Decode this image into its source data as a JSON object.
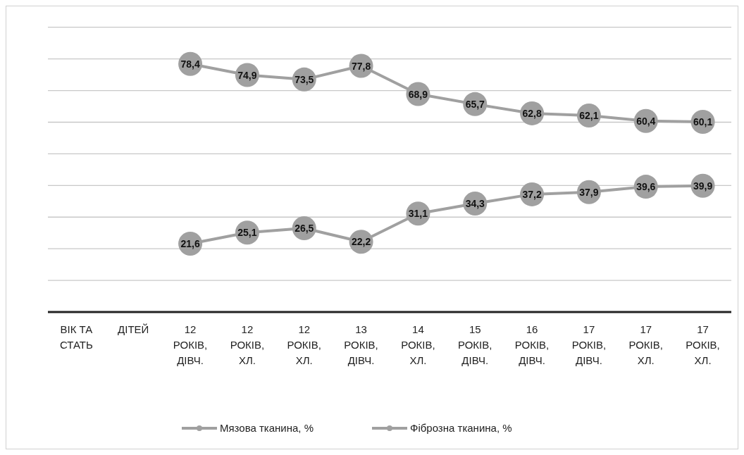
{
  "chart_data": {
    "type": "line",
    "categories": [
      "ВІК ТА СТАТЬ",
      "ДІТЕЙ",
      "12 РОКІВ, ДІВЧ.",
      "12 РОКІВ, ХЛ.",
      "12 РОКІВ, ХЛ.",
      "13 РОКІВ, ДІВЧ.",
      "14 РОКІВ, ХЛ.",
      "15 РОКІВ, ДІВЧ.",
      "16 РОКІВ, ДІВЧ.",
      "17 РОКІВ, ДІВЧ.",
      "17 РОКІВ, ХЛ.",
      "17 РОКІВ, ХЛ."
    ],
    "series": [
      {
        "name": "Мязова тканина, %",
        "color": "#a0a0a0",
        "values": [
          null,
          null,
          78.4,
          74.9,
          73.5,
          77.8,
          68.9,
          65.7,
          62.8,
          62.1,
          60.4,
          60.1
        ],
        "value_labels": [
          null,
          null,
          "78,4",
          "74,9",
          "73,5",
          "77,8",
          "68,9",
          "65,7",
          "62,8",
          "62,1",
          "60,4",
          "60,1"
        ]
      },
      {
        "name": "Фіброзна тканина, %",
        "color": "#a0a0a0",
        "values": [
          null,
          null,
          21.6,
          25.1,
          26.5,
          22.2,
          31.1,
          34.3,
          37.2,
          37.9,
          39.6,
          39.9
        ],
        "value_labels": [
          null,
          null,
          "21,6",
          "25,1",
          "26,5",
          "22,2",
          "31,1",
          "34,3",
          "37,2",
          "37,9",
          "39,6",
          "39,9"
        ]
      }
    ],
    "tick_labels": "x",
    "grid": "y",
    "legend": "bottom",
    "marker": "circle",
    "line_style": "solid"
  }
}
